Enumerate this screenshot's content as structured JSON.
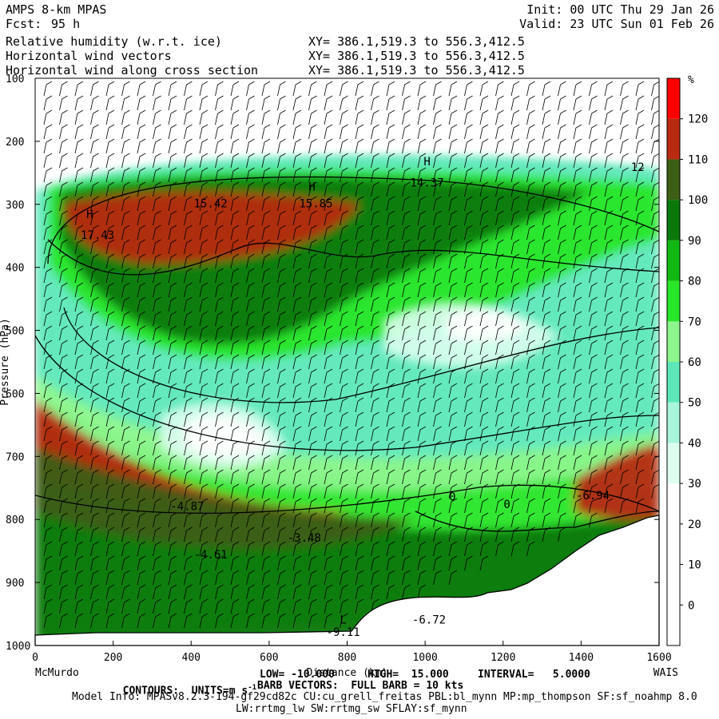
{
  "header": {
    "model": "AMPS 8-km MPAS",
    "fcst_label": "Fcst:",
    "fcst_value": "95 h",
    "init": "Init: 00 UTC Thu 29 Jan 26",
    "valid": "Valid: 23 UTC Sun 01 Feb 26",
    "fields": [
      {
        "name": "Relative humidity (w.r.t. ice)",
        "xy": "XY= 386.1,519.3 to 556.3,412.5"
      },
      {
        "name": "Horizontal wind vectors",
        "xy": "XY= 386.1,519.3 to 556.3,412.5"
      },
      {
        "name": "Horizontal wind along cross section",
        "xy": "XY= 386.1,519.3 to 556.3,412.5"
      }
    ]
  },
  "footer": {
    "contours": "CONTOURS:  UNITS=m s",
    "contours_sup": "-1",
    "low": "LOW= -10.000",
    "high": "HIGH=  15.000",
    "interval": "INTERVAL=   5.0000",
    "barbs": "BARB VECTORS:  FULL BARB = 10 kts",
    "model_info": "Model Info: MPASv8.2.3-194-gf29cd82c CU:cu_grell_freitas PBL:bl_mynn MP:mp_thompson SF:sf_noahmp 8.0",
    "model_info2": "LW:rrtmg_lw SW:rrtmg_sw SFLAY:sf_mynn"
  },
  "chart_data": {
    "type": "heatmap",
    "xlabel": "Distance (km)",
    "ylabel": "Pressure (hPa)",
    "xlim": [
      0,
      1600
    ],
    "ylim": [
      1000,
      100
    ],
    "x_ticks": [
      0,
      200,
      400,
      600,
      800,
      1000,
      1200,
      1400,
      1600
    ],
    "y_ticks": [
      100,
      200,
      300,
      400,
      500,
      600,
      700,
      800,
      900,
      1000
    ],
    "x_end_labels": {
      "left": "McMurdo",
      "right": "WAIS"
    },
    "colorbar": {
      "unit": "%",
      "levels": [
        0,
        10,
        20,
        30,
        40,
        50,
        60,
        70,
        80,
        90,
        100,
        110,
        120
      ],
      "colors": [
        "#ffffff",
        "#ffffff",
        "#ffffff",
        "#ffffff",
        "#dcffef",
        "#a8f5dc",
        "#5ce8b8",
        "#8cf58c",
        "#28e628",
        "#12b812",
        "#0a780a",
        "#3d5e14",
        "#b82a12",
        "#ff0000"
      ]
    },
    "contour_labels": [
      {
        "text": "17.43",
        "x": 160,
        "p": 355
      },
      {
        "text": "15.42",
        "x": 450,
        "p": 305
      },
      {
        "text": "15.85",
        "x": 720,
        "p": 305
      },
      {
        "text": "14.37",
        "x": 1005,
        "p": 272
      },
      {
        "text": "12",
        "x": 1545,
        "p": 247
      },
      {
        "text": "-4.87",
        "x": 390,
        "p": 785
      },
      {
        "text": "-4.61",
        "x": 450,
        "p": 862
      },
      {
        "text": "-3.48",
        "x": 690,
        "p": 835
      },
      {
        "text": "-6.94",
        "x": 1430,
        "p": 768
      },
      {
        "text": "0",
        "x": 1070,
        "p": 770
      },
      {
        "text": "0",
        "x": 1210,
        "p": 782
      },
      {
        "text": "-6.72",
        "x": 1010,
        "p": 965
      },
      {
        "text": "-9.11",
        "x": 790,
        "p": 985
      }
    ],
    "extrema_markers": [
      {
        "text": "H",
        "x": 140,
        "p": 322
      },
      {
        "text": "H",
        "x": 710,
        "p": 278
      },
      {
        "text": "H",
        "x": 1005,
        "p": 238
      },
      {
        "text": "L",
        "x": 790,
        "p": 965
      }
    ]
  }
}
